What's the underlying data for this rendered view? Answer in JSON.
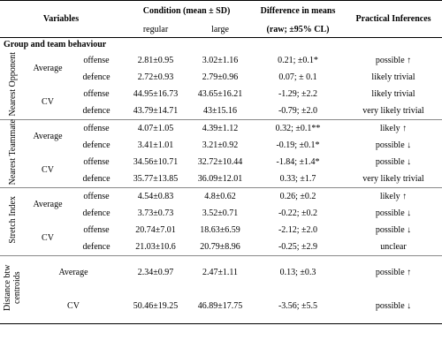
{
  "header": {
    "variables": "Variables",
    "condition": "Condition (mean ± SD)",
    "difference": "Difference in means",
    "difference_sub": "(raw; ±95% CL)",
    "inferences": "Practical Inferences",
    "regular": "regular",
    "large": "large"
  },
  "section": "Group and team behaviour",
  "groups": [
    {
      "label": "Nearest Opponent",
      "stats": [
        {
          "label": "Average",
          "rows": [
            [
              "offense",
              "2.81±0.95",
              "3.02±1.16",
              "0.21; ±0.1*",
              "possible ↑"
            ],
            [
              "defence",
              "2.72±0.93",
              "2.79±0.96",
              "0.07; ± 0.1",
              "likely trivial"
            ]
          ]
        },
        {
          "label": "CV",
          "rows": [
            [
              "offense",
              "44.95±16.73",
              "43.65±16.21",
              "-1.29; ±2.2",
              "likely trivial"
            ],
            [
              "defence",
              "43.79±14.71",
              "43±15.16",
              "-0.79; ±2.0",
              "very likely trivial"
            ]
          ]
        }
      ]
    },
    {
      "label": "Nearest Teammate",
      "stats": [
        {
          "label": "Average",
          "rows": [
            [
              "offense",
              "4.07±1.05",
              "4.39±1.12",
              "0.32; ±0.1**",
              "likely ↑"
            ],
            [
              "defence",
              "3.41±1.01",
              "3.21±0.92",
              "-0.19; ±0.1*",
              "possible ↓"
            ]
          ]
        },
        {
          "label": "CV",
          "rows": [
            [
              "offense",
              "34.56±10.71",
              "32.72±10.44",
              "-1.84; ±1.4*",
              "possible ↓"
            ],
            [
              "defence",
              "35.77±13.85",
              "36.09±12.01",
              "0.33; ±1.7",
              "very likely trivial"
            ]
          ]
        }
      ]
    },
    {
      "label": "Stretch Index",
      "stats": [
        {
          "label": "Average",
          "rows": [
            [
              "offense",
              "4.54±0.83",
              "4.8±0.62",
              "0.26; ±0.2",
              "likely ↑"
            ],
            [
              "defence",
              "3.73±0.73",
              "3.52±0.71",
              "-0.22; ±0.2",
              "possible ↓"
            ]
          ]
        },
        {
          "label": "CV",
          "rows": [
            [
              "offense",
              "20.74±7.01",
              "18.63±6.59",
              "-2.12; ±2.0",
              "possible ↓"
            ],
            [
              "defence",
              "21.03±10.6",
              "20.79±8.96",
              "-0.25; ±2.9",
              "unclear"
            ]
          ]
        }
      ]
    },
    {
      "label": "Distance btw centroids",
      "stats": [
        {
          "label": "Average",
          "rows": [
            [
              "2.34±0.97",
              "2.47±1.11",
              "0.13; ±0.3",
              "possible ↑"
            ]
          ]
        },
        {
          "label": "CV",
          "rows": [
            [
              "50.46±19.25",
              "46.89±17.75",
              "-3.56; ±5.5",
              "possible ↓"
            ]
          ]
        }
      ]
    }
  ]
}
